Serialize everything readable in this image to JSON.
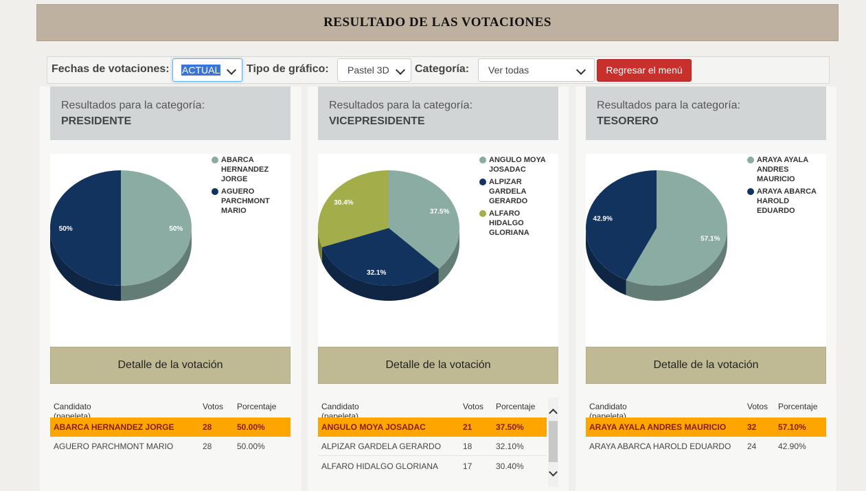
{
  "page_title": "RESULTADO DE LAS VOTACIONES",
  "filters": {
    "fechas_label": "Fechas de votaciones:",
    "fechas_value": "ACTUAL",
    "tipo_label": "Tipo de gráfico:",
    "tipo_value": "Pastel 3D",
    "categoria_label": "Categoría:",
    "categoria_value": "Ver todas",
    "back_button": "Regresar el menú"
  },
  "colors": {
    "series1": "#8aaca3",
    "series2": "#13335f",
    "series3": "#a3ad4a",
    "highlight_row": "#ffa500"
  },
  "table_headers": {
    "candidato": "Candidato (papeleta)",
    "votos": "Votos",
    "porcentaje": "Porcentaje"
  },
  "detail_label": "Detalle de la votación",
  "panels": [
    {
      "heading": "Resultados para la categoría:",
      "category": "PRESIDENTE",
      "legend": [
        {
          "lines": [
            "ABARCA",
            "HERNANDEZ",
            "JORGE"
          ]
        },
        {
          "lines": [
            "AGUERO",
            "PARCHMONT",
            "MARIO"
          ]
        }
      ],
      "chart_data": {
        "type": "pie",
        "labels": [
          "ABARCA HERNANDEZ JORGE",
          "AGUERO PARCHMONT MARIO"
        ],
        "values": [
          50,
          50
        ],
        "slice_labels": [
          "50%",
          "50%"
        ]
      },
      "rows": [
        {
          "name": "ABARCA HERNANDEZ JORGE",
          "votes": "28",
          "pct": "50.00%"
        },
        {
          "name": "AGUERO PARCHMONT MARIO",
          "votes": "28",
          "pct": "50.00%"
        }
      ]
    },
    {
      "heading": "Resultados para la categoría:",
      "category": "VICEPRESIDENTE",
      "legend": [
        {
          "lines": [
            "ANGULO MOYA",
            "JOSADAC"
          ]
        },
        {
          "lines": [
            "ALPIZAR",
            "GARDELA",
            "GERARDO"
          ]
        },
        {
          "lines": [
            "ALFARO",
            "HIDALGO",
            "GLORIANA"
          ]
        }
      ],
      "chart_data": {
        "type": "pie",
        "labels": [
          "ANGULO MOYA JOSADAC",
          "ALPIZAR GARDELA GERARDO",
          "ALFARO HIDALGO GLORIANA"
        ],
        "values": [
          37.5,
          32.1,
          30.4
        ],
        "slice_labels": [
          "37.5%",
          "32.1%",
          "30.4%"
        ]
      },
      "rows": [
        {
          "name": "ANGULO MOYA JOSADAC",
          "votes": "21",
          "pct": "37.50%"
        },
        {
          "name": "ALPIZAR GARDELA GERARDO",
          "votes": "18",
          "pct": "32.10%"
        },
        {
          "name": "ALFARO HIDALGO GLORIANA",
          "votes": "17",
          "pct": "30.40%"
        }
      ]
    },
    {
      "heading": "Resultados para la categoría:",
      "category": "TESORERO",
      "legend": [
        {
          "lines": [
            "ARAYA AYALA",
            "ANDRES",
            "MAURICIO"
          ]
        },
        {
          "lines": [
            "ARAYA ABARCA",
            "HAROLD",
            "EDUARDO"
          ]
        }
      ],
      "chart_data": {
        "type": "pie",
        "labels": [
          "ARAYA AYALA ANDRES MAURICIO",
          "ARAYA ABARCA HAROLD EDUARDO"
        ],
        "values": [
          57.1,
          42.9
        ],
        "slice_labels": [
          "57.1%",
          "42.9%"
        ]
      },
      "rows": [
        {
          "name": "ARAYA AYALA ANDRES MAURICIO",
          "votes": "32",
          "pct": "57.10%"
        },
        {
          "name": "ARAYA ABARCA HAROLD EDUARDO",
          "votes": "24",
          "pct": "42.90%"
        }
      ]
    }
  ]
}
